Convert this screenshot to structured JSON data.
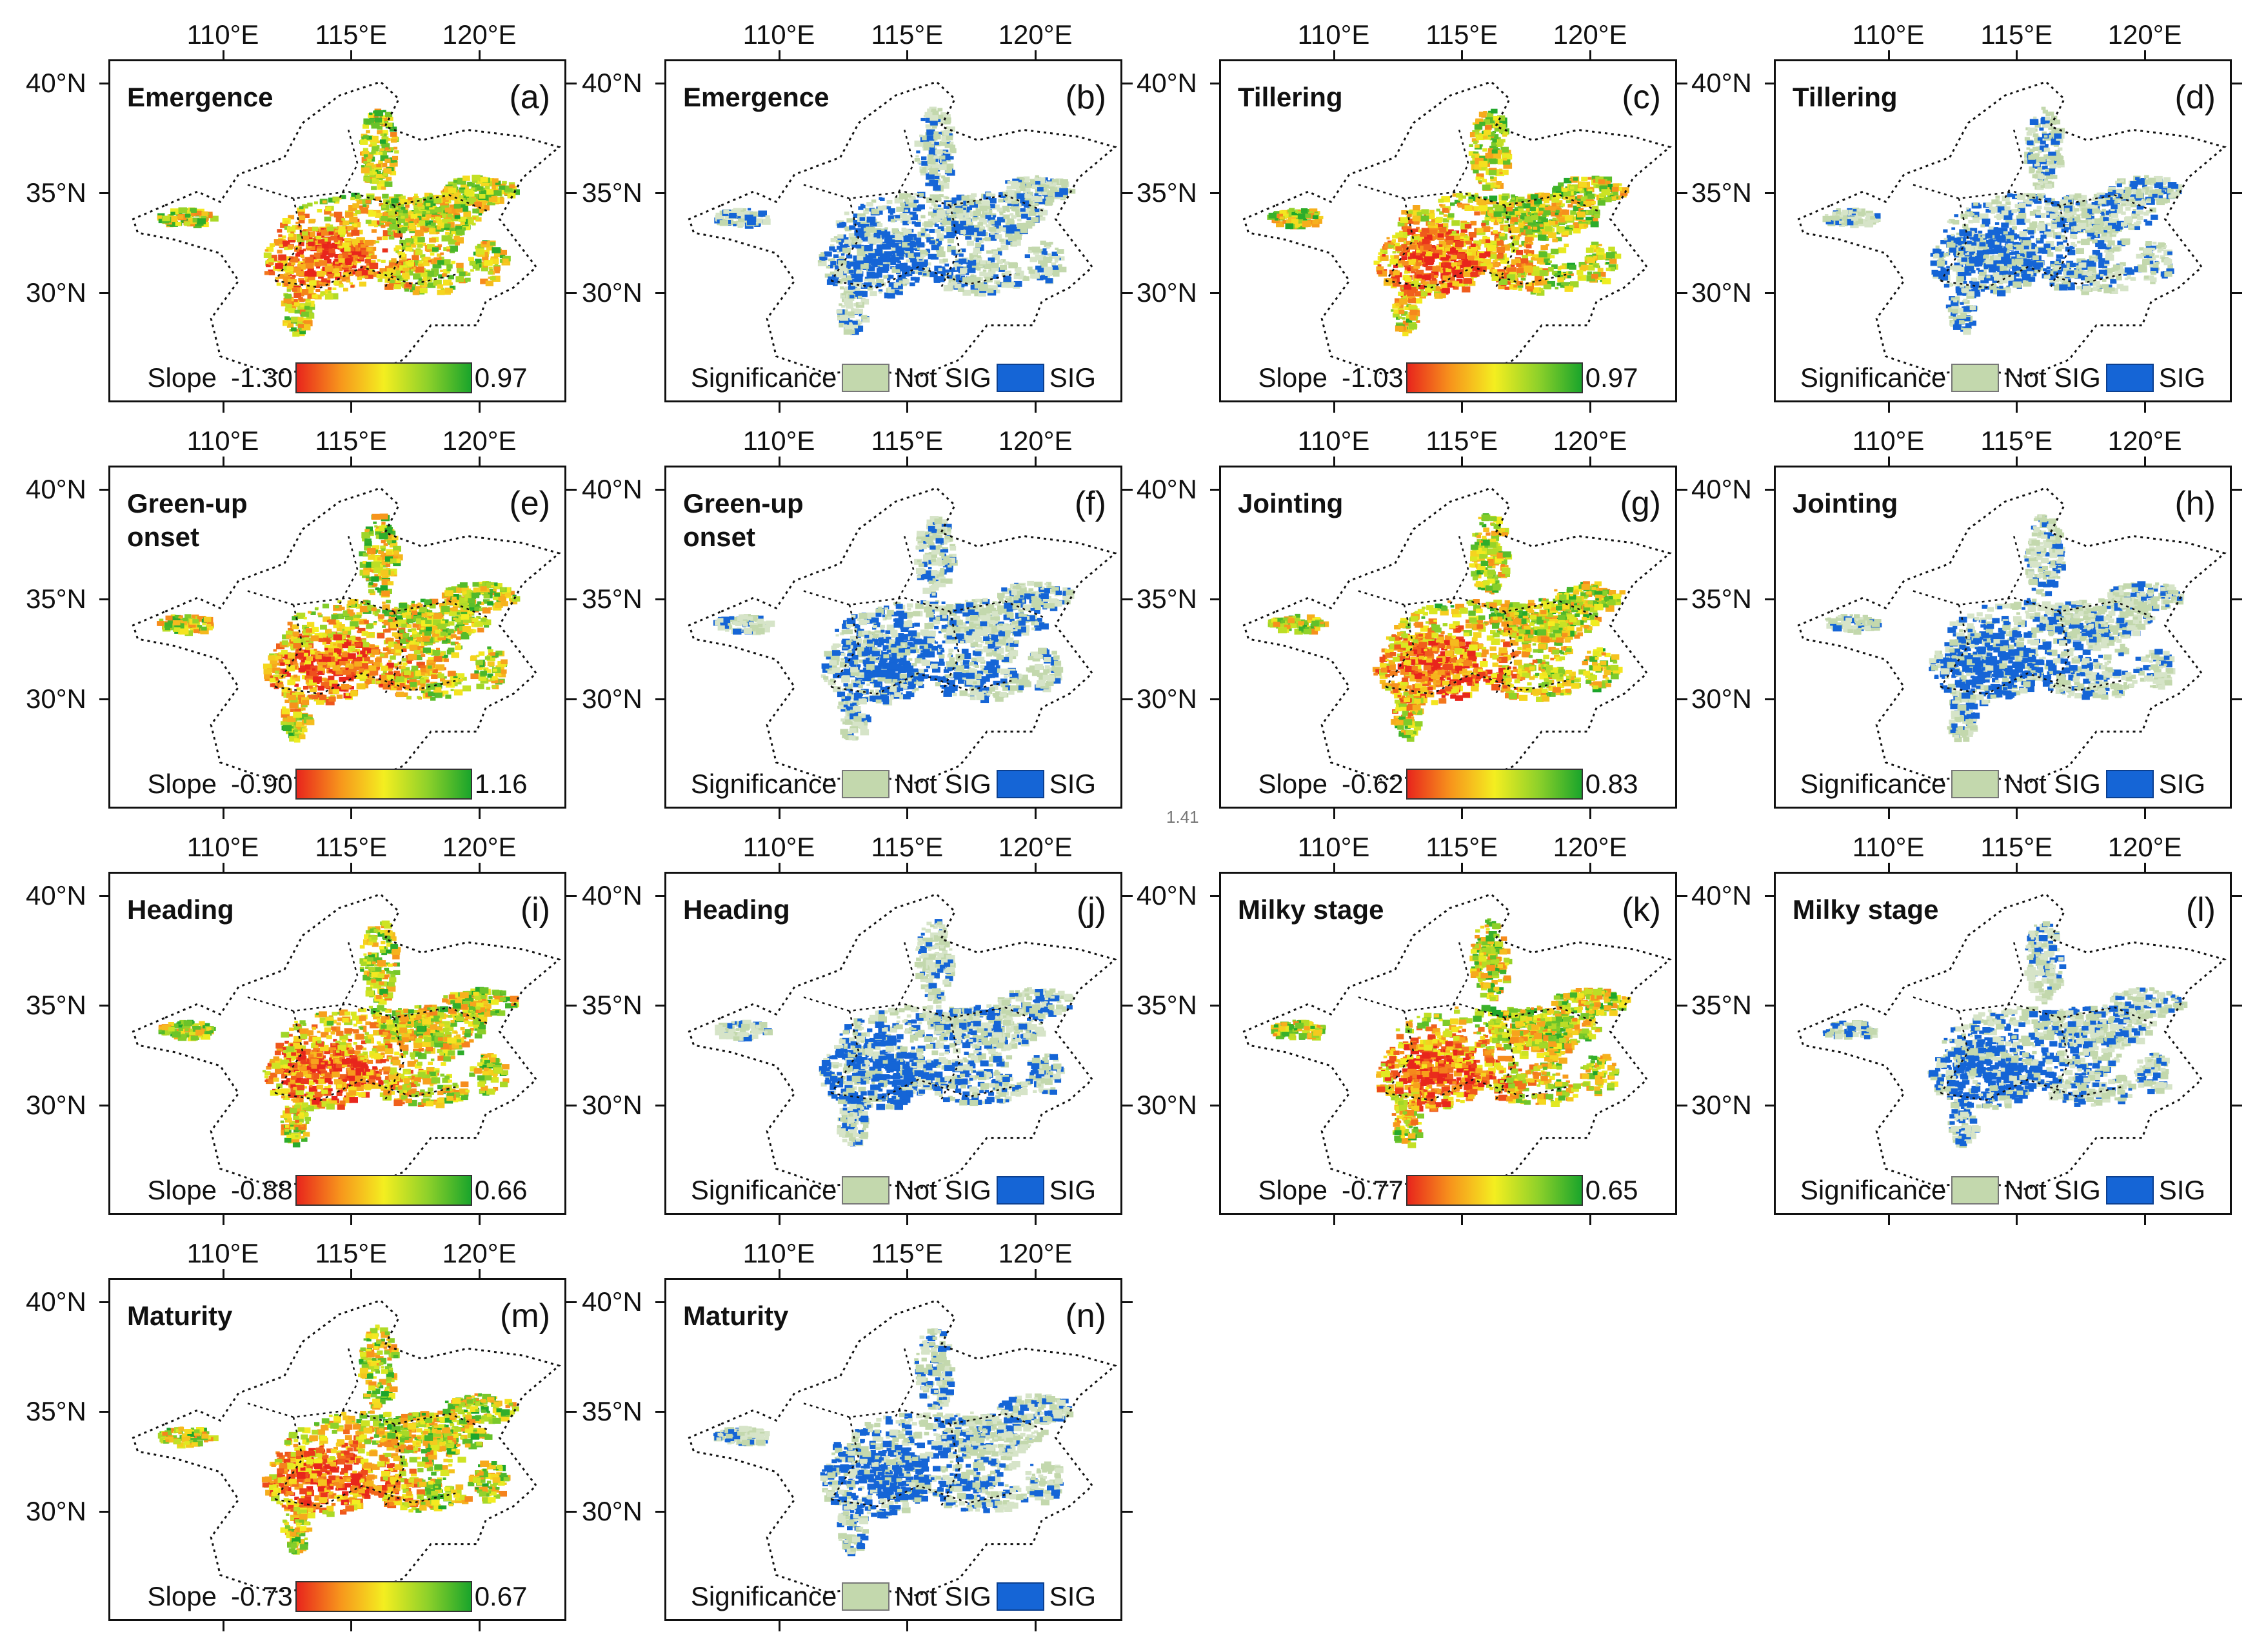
{
  "axes": {
    "lon_labels": [
      "110°E",
      "115°E",
      "120°E"
    ],
    "lat_labels": [
      "40°N",
      "35°N",
      "30°N"
    ]
  },
  "legend_text": {
    "slope": "Slope",
    "significance": "Significance",
    "not_sig": "Not SIG",
    "sig": "SIG"
  },
  "colors": {
    "slope_low": "#e8251c",
    "slope_mid": "#f4ee20",
    "slope_high": "#1aa52b",
    "not_sig": "#c3d8ad",
    "sig": "#1565d6"
  },
  "stray_text": "1.41",
  "panels": [
    {
      "letter": "(a)",
      "title": "Emergence",
      "type": "slope",
      "min": "-1.30",
      "max": "0.97"
    },
    {
      "letter": "(b)",
      "title": "Emergence",
      "type": "sig"
    },
    {
      "letter": "(c)",
      "title": "Tillering",
      "type": "slope",
      "min": "-1.03",
      "max": "0.97"
    },
    {
      "letter": "(d)",
      "title": "Tillering",
      "type": "sig"
    },
    {
      "letter": "(e)",
      "title": "Green-up\nonset",
      "type": "slope",
      "min": "-0.90",
      "max": "1.16"
    },
    {
      "letter": "(f)",
      "title": "Green-up\nonset",
      "type": "sig"
    },
    {
      "letter": "(g)",
      "title": "Jointing",
      "type": "slope",
      "min": "-0.62",
      "max": "0.83"
    },
    {
      "letter": "(h)",
      "title": "Jointing",
      "type": "sig"
    },
    {
      "letter": "(i)",
      "title": "Heading",
      "type": "slope",
      "min": "-0.88",
      "max": "0.66"
    },
    {
      "letter": "(j)",
      "title": "Heading",
      "type": "sig"
    },
    {
      "letter": "(k)",
      "title": "Milky stage",
      "type": "slope",
      "min": "-0.77",
      "max": "0.65"
    },
    {
      "letter": "(l)",
      "title": "Milky stage",
      "type": "sig"
    },
    {
      "letter": "(m)",
      "title": "Maturity",
      "type": "slope",
      "min": "-0.73",
      "max": "0.67"
    },
    {
      "letter": "(n)",
      "title": "Maturity",
      "type": "sig"
    }
  ]
}
